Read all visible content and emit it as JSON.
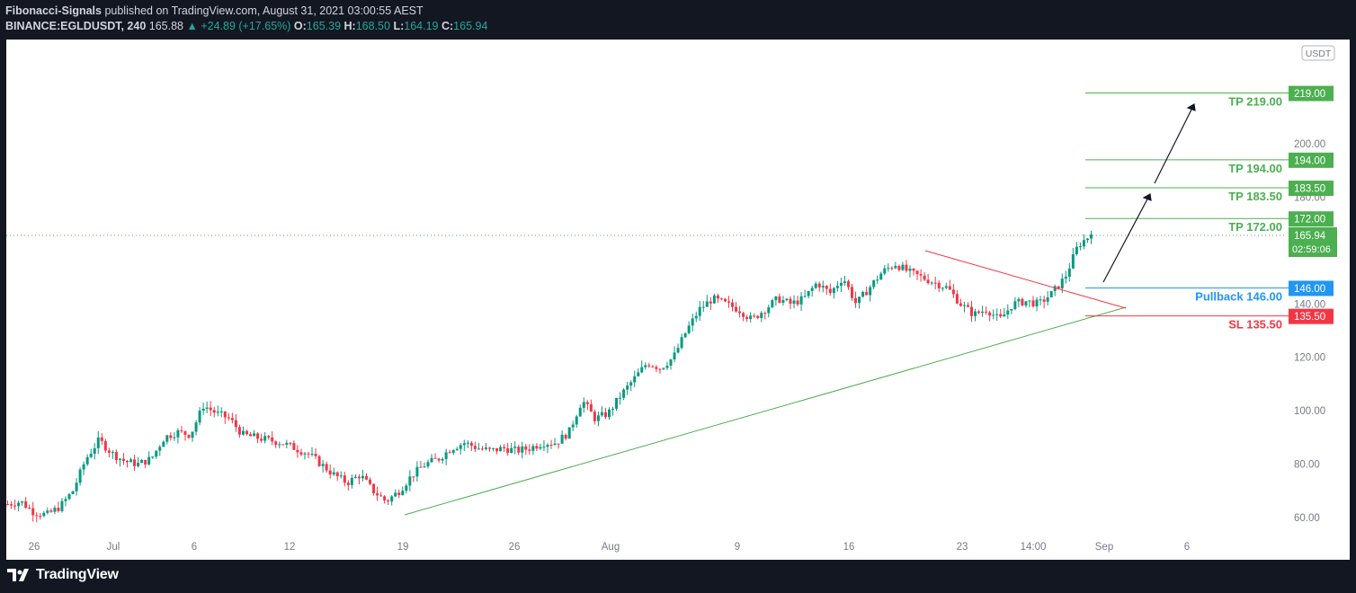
{
  "header": {
    "author": "Fibonacci-Signals",
    "published_text": "published on TradingView.com, August 31, 2021 03:00:55 AEST",
    "symbol": "BINANCE:EGLDUSDT, 240",
    "last": "165.88",
    "change": "+24.89 (+17.65%)",
    "open_label": "O:",
    "open": "165.39",
    "high_label": "H:",
    "high": "168.50",
    "low_label": "L:",
    "low": "164.19",
    "close_label": "C:",
    "close": "165.94"
  },
  "currency_badge": "USDT",
  "chart_data": {
    "type": "candlestick",
    "symbol": "EGLDUSDT",
    "interval": "240",
    "y_axis": {
      "ticks": [
        "200.00",
        "180.00",
        "140.00",
        "120.00",
        "100.00",
        "80.00",
        "60.00"
      ],
      "range": [
        52,
        232
      ],
      "scale": "linear"
    },
    "x_axis": {
      "ticks": [
        "26",
        "Jul",
        "6",
        "12",
        "19",
        "26",
        "Aug",
        "9",
        "16",
        "23",
        "14:00",
        "Sep",
        "6"
      ]
    },
    "current_price": {
      "value": "165.94",
      "countdown": "02:59:06"
    },
    "levels": [
      {
        "label": "TP 219.00",
        "price": 219.0,
        "axis": "219.00",
        "color": "#4caf50"
      },
      {
        "label": "TP 194.00",
        "price": 194.0,
        "axis": "194.00",
        "color": "#4caf50"
      },
      {
        "label": "TP 183.50",
        "price": 183.5,
        "axis": "183.50",
        "color": "#4caf50"
      },
      {
        "label": "TP 172.00",
        "price": 172.0,
        "axis": "172.00",
        "color": "#4caf50"
      },
      {
        "label": "Pullback 146.00",
        "price": 146.0,
        "axis": "146.00",
        "color": "#2196f3"
      },
      {
        "label": "SL 135.50",
        "price": 135.5,
        "axis": "135.50",
        "color": "#f23645"
      }
    ],
    "trendlines": [
      {
        "name": "support",
        "color": "#4caf50",
        "from": [
          "Jul 19",
          65
        ],
        "to": [
          "Sep 3",
          137
        ]
      },
      {
        "name": "resistance",
        "color": "#f23645",
        "from": [
          "Aug 20",
          156
        ],
        "to": [
          "Sep 3",
          137
        ]
      }
    ],
    "candles_approx": [
      [
        1,
        65
      ],
      [
        2,
        66
      ],
      [
        3,
        62
      ],
      [
        4,
        61
      ],
      [
        5,
        64
      ],
      [
        6,
        70
      ],
      [
        7,
        82
      ],
      [
        8,
        89
      ],
      [
        9,
        84
      ],
      [
        10,
        81
      ],
      [
        11,
        80
      ],
      [
        12,
        82
      ],
      [
        13,
        90
      ],
      [
        14,
        92
      ],
      [
        15,
        91
      ],
      [
        16,
        102
      ],
      [
        17,
        99
      ],
      [
        18,
        97
      ],
      [
        19,
        91
      ],
      [
        20,
        90
      ],
      [
        21,
        89
      ],
      [
        22,
        88
      ],
      [
        23,
        86
      ],
      [
        24,
        84
      ],
      [
        25,
        80
      ],
      [
        26,
        76
      ],
      [
        27,
        73
      ],
      [
        28,
        76
      ],
      [
        29,
        70
      ],
      [
        30,
        66
      ],
      [
        31,
        70
      ],
      [
        32,
        76
      ],
      [
        33,
        80
      ],
      [
        34,
        82
      ],
      [
        35,
        86
      ],
      [
        36,
        88
      ],
      [
        37,
        86
      ],
      [
        38,
        85
      ],
      [
        39,
        86
      ],
      [
        40,
        85
      ],
      [
        41,
        86
      ],
      [
        42,
        88
      ],
      [
        43,
        88
      ],
      [
        44,
        92
      ],
      [
        45,
        104
      ],
      [
        46,
        97
      ],
      [
        47,
        99
      ],
      [
        48,
        106
      ],
      [
        49,
        112
      ],
      [
        50,
        118
      ],
      [
        51,
        116
      ],
      [
        52,
        120
      ],
      [
        53,
        130
      ],
      [
        54,
        138
      ],
      [
        55,
        142
      ],
      [
        56,
        140
      ],
      [
        57,
        138
      ],
      [
        58,
        134
      ],
      [
        59,
        138
      ],
      [
        60,
        142
      ],
      [
        61,
        140
      ],
      [
        62,
        142
      ],
      [
        63,
        148
      ],
      [
        64,
        144
      ],
      [
        65,
        150
      ],
      [
        66,
        140
      ],
      [
        67,
        146
      ],
      [
        68,
        152
      ],
      [
        69,
        155
      ],
      [
        70,
        152
      ],
      [
        71,
        150
      ],
      [
        72,
        148
      ],
      [
        73,
        146
      ],
      [
        74,
        140
      ],
      [
        75,
        136
      ],
      [
        76,
        138
      ],
      [
        77,
        134
      ],
      [
        78,
        140
      ],
      [
        79,
        141
      ],
      [
        80,
        140
      ],
      [
        81,
        144
      ],
      [
        82,
        150
      ],
      [
        83,
        162
      ],
      [
        84,
        166
      ]
    ]
  },
  "footer": {
    "brand": "TradingView"
  }
}
